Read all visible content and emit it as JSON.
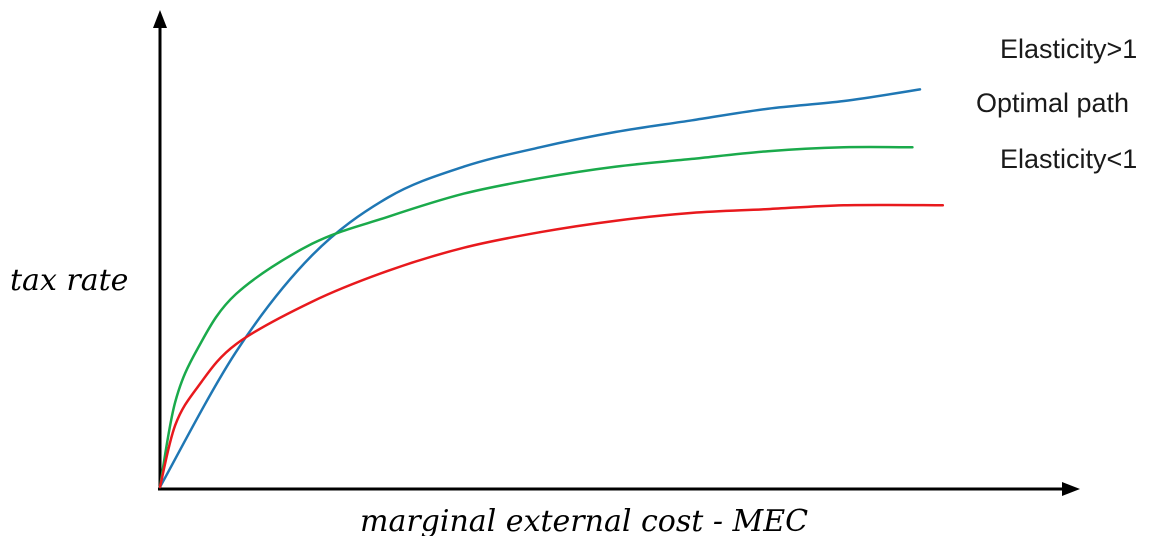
{
  "chart_data": {
    "type": "line",
    "xlabel": "marginal external cost - MEC",
    "ylabel": "tax rate",
    "xlim": [
      0,
      1
    ],
    "ylim": [
      0,
      1
    ],
    "x_ticks": [],
    "y_ticks": [],
    "grid": false,
    "legend_placement": "right, labels at line ends",
    "series": [
      {
        "name": "Elasticity>1",
        "color": "#1f77b4",
        "x": [
          0,
          0.1,
          0.2,
          0.3,
          0.4,
          0.5,
          0.6,
          0.7,
          0.8,
          0.9,
          1.0
        ],
        "y": [
          0,
          0.35,
          0.6,
          0.75,
          0.83,
          0.88,
          0.92,
          0.95,
          0.98,
          1.0,
          1.03
        ]
      },
      {
        "name": "Optimal path",
        "color": "#1aaa4b",
        "x": [
          0,
          0.02,
          0.05,
          0.1,
          0.2,
          0.3,
          0.4,
          0.5,
          0.6,
          0.7,
          0.8,
          0.9,
          0.99
        ],
        "y": [
          0,
          0.22,
          0.36,
          0.5,
          0.63,
          0.7,
          0.76,
          0.8,
          0.83,
          0.85,
          0.87,
          0.88,
          0.88
        ]
      },
      {
        "name": "Elasticity<1",
        "color": "#e8191d",
        "x": [
          0,
          0.02,
          0.05,
          0.1,
          0.2,
          0.3,
          0.4,
          0.5,
          0.6,
          0.7,
          0.8,
          0.9,
          1.03
        ],
        "y": [
          0,
          0.16,
          0.26,
          0.37,
          0.48,
          0.56,
          0.62,
          0.66,
          0.69,
          0.71,
          0.72,
          0.73,
          0.73
        ]
      }
    ]
  }
}
